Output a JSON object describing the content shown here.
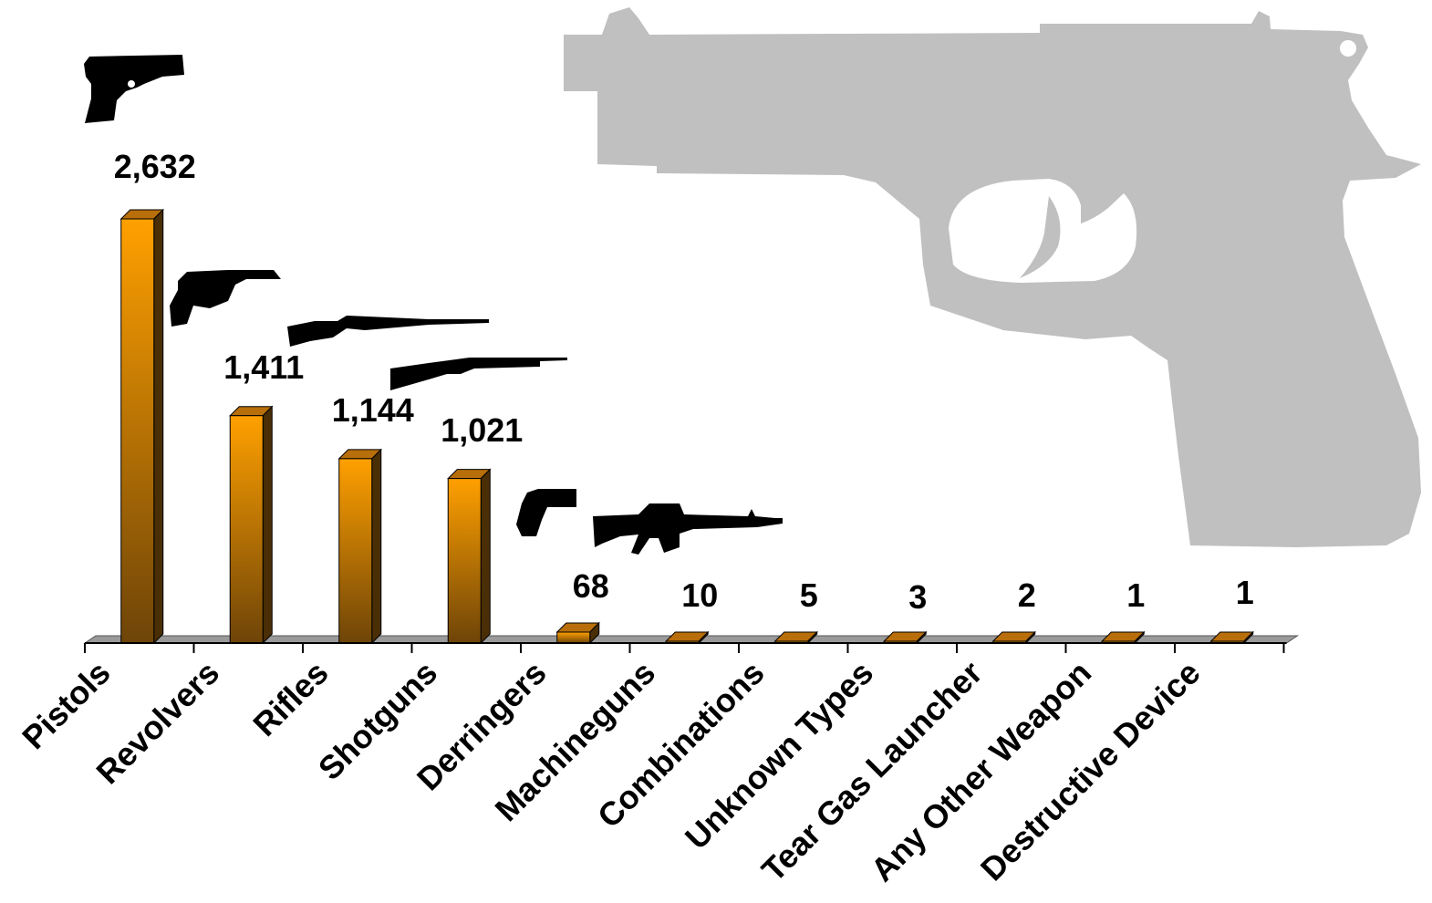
{
  "chart_data": {
    "type": "bar",
    "title": "",
    "xlabel": "",
    "ylabel": "",
    "ylim": [
      0,
      2632
    ],
    "grid": false,
    "legend": "none",
    "categories": [
      "Pistols",
      "Revolvers",
      "Rifles",
      "Shotguns",
      "Derringers",
      "Machineguns",
      "Combinations",
      "Unknown Types",
      "Tear Gas Launcher",
      "Any Other Weapon",
      "Destructive Device"
    ],
    "values": [
      2632,
      1411,
      1144,
      1021,
      68,
      10,
      5,
      3,
      2,
      1,
      1
    ],
    "value_labels": [
      "2,632",
      "1,411",
      "1,144",
      "1,021",
      "68",
      "10",
      "5",
      "3",
      "2",
      "1",
      "1"
    ],
    "icons": [
      "pistol-icon",
      "revolver-icon",
      "rifle-icon",
      "shotgun-icon",
      "derringer-icon",
      "machinegun-icon"
    ],
    "background_icon": "pistol-silhouette-icon",
    "colors": {
      "bar_top": "#FFA000",
      "bar_bottom": "#6E4408",
      "bar_side": "#4A2E06",
      "floor": "#9a9a9a",
      "silhouette": "#c0c0c0"
    }
  }
}
